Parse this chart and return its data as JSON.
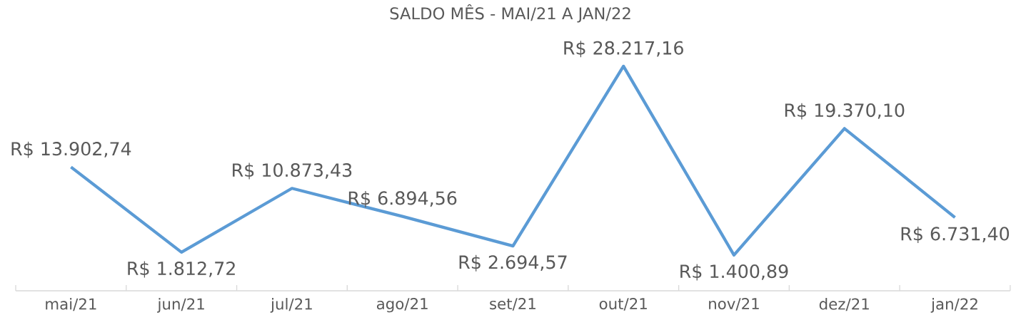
{
  "chart_data": {
    "type": "line",
    "title": "SALDO MÊS - MAI/21 A JAN/22",
    "categories": [
      "mai/21",
      "jun/21",
      "jul/21",
      "ago/21",
      "set/21",
      "out/21",
      "nov/21",
      "dez/21",
      "jan/22"
    ],
    "values": [
      13902.74,
      1812.72,
      10873.43,
      6894.56,
      2694.57,
      28217.16,
      1400.89,
      19370.1,
      6731.4
    ],
    "value_labels": [
      "R$ 13.902,74",
      "R$ 1.812,72",
      "R$ 10.873,43",
      "R$ 6.894,56",
      "R$ 2.694,57",
      "R$ 28.217,16",
      "R$ 1.400,89",
      "R$ 19.370,10",
      "R$ 6.731,40"
    ],
    "color": "#5b9bd5",
    "line_style": "solid",
    "marker": "none"
  }
}
